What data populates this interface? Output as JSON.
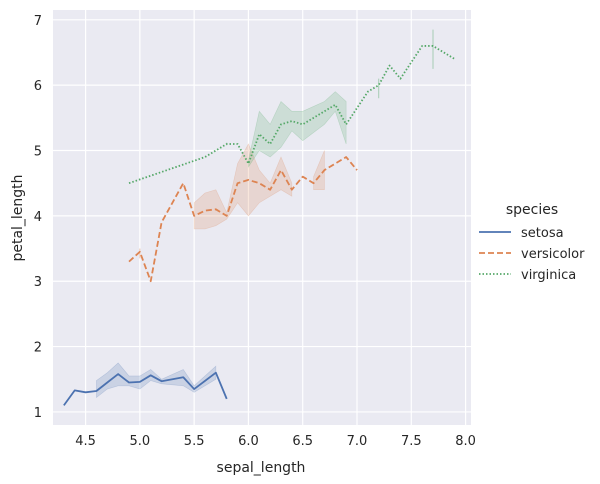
{
  "chart_data": {
    "type": "line",
    "title": "",
    "xlabel": "sepal_length",
    "ylabel": "petal_length",
    "xlim": [
      4.2,
      8.05
    ],
    "ylim": [
      0.8,
      7.15
    ],
    "xticks": [
      4.5,
      5.0,
      5.5,
      6.0,
      6.5,
      7.0,
      7.5,
      8.0
    ],
    "xtick_labels": [
      "4.5",
      "5.0",
      "5.5",
      "6.0",
      "6.5",
      "7.0",
      "7.5",
      "8.0"
    ],
    "yticks": [
      1,
      2,
      3,
      4,
      5,
      6,
      7
    ],
    "ytick_labels": [
      "1",
      "2",
      "3",
      "4",
      "5",
      "6",
      "7"
    ],
    "grid": true,
    "background": "#eaeaf2",
    "legend": {
      "title": "species",
      "placement": "right"
    },
    "series": [
      {
        "name": "setosa",
        "color": "#4c72b0",
        "dash": "solid",
        "points": [
          {
            "x": 4.3,
            "y": 1.1
          },
          {
            "x": 4.4,
            "y": 1.33
          },
          {
            "x": 4.5,
            "y": 1.3
          },
          {
            "x": 4.6,
            "y": 1.32,
            "lo": 1.22,
            "hi": 1.48
          },
          {
            "x": 4.7,
            "y": 1.45,
            "lo": 1.35,
            "hi": 1.6
          },
          {
            "x": 4.8,
            "y": 1.58,
            "lo": 1.4,
            "hi": 1.75
          },
          {
            "x": 4.9,
            "y": 1.45,
            "lo": 1.4,
            "hi": 1.55
          },
          {
            "x": 5.0,
            "y": 1.46,
            "lo": 1.35,
            "hi": 1.55
          },
          {
            "x": 5.1,
            "y": 1.56,
            "lo": 1.48,
            "hi": 1.65
          },
          {
            "x": 5.2,
            "y": 1.47,
            "lo": 1.43,
            "hi": 1.5
          },
          {
            "x": 5.4,
            "y": 1.53,
            "lo": 1.4,
            "hi": 1.65
          },
          {
            "x": 5.5,
            "y": 1.35,
            "lo": 1.3,
            "hi": 1.4
          },
          {
            "x": 5.7,
            "y": 1.6,
            "lo": 1.5,
            "hi": 1.7
          },
          {
            "x": 5.8,
            "y": 1.2
          }
        ]
      },
      {
        "name": "versicolor",
        "color": "#dd8452",
        "dash": "dashed",
        "points": [
          {
            "x": 4.9,
            "y": 3.3
          },
          {
            "x": 5.0,
            "y": 3.45,
            "lo": 3.35,
            "hi": 3.5
          },
          {
            "x": 5.1,
            "y": 3.0
          },
          {
            "x": 5.2,
            "y": 3.9
          },
          {
            "x": 5.4,
            "y": 4.5
          },
          {
            "x": 5.5,
            "y": 4.0,
            "lo": 3.8,
            "hi": 4.2
          },
          {
            "x": 5.6,
            "y": 4.08,
            "lo": 3.8,
            "hi": 4.35
          },
          {
            "x": 5.7,
            "y": 4.1,
            "lo": 3.85,
            "hi": 4.4
          },
          {
            "x": 5.8,
            "y": 4.0,
            "lo": 3.95,
            "hi": 4.05
          },
          {
            "x": 5.9,
            "y": 4.5,
            "lo": 4.2,
            "hi": 4.8
          },
          {
            "x": 6.0,
            "y": 4.55,
            "lo": 4.0,
            "hi": 5.1
          },
          {
            "x": 6.1,
            "y": 4.5,
            "lo": 4.2,
            "hi": 4.7
          },
          {
            "x": 6.2,
            "y": 4.4,
            "lo": 4.3,
            "hi": 4.5
          },
          {
            "x": 6.3,
            "y": 4.7,
            "lo": 4.4,
            "hi": 4.9
          },
          {
            "x": 6.4,
            "y": 4.4,
            "lo": 4.3,
            "hi": 4.5
          },
          {
            "x": 6.5,
            "y": 4.6
          },
          {
            "x": 6.6,
            "y": 4.5,
            "lo": 4.4,
            "hi": 4.6
          },
          {
            "x": 6.7,
            "y": 4.7,
            "lo": 4.4,
            "hi": 5.0
          },
          {
            "x": 6.8,
            "y": 4.8
          },
          {
            "x": 6.9,
            "y": 4.9
          },
          {
            "x": 7.0,
            "y": 4.7
          }
        ]
      },
      {
        "name": "virginica",
        "color": "#55a868",
        "dash": "dotted",
        "points": [
          {
            "x": 4.9,
            "y": 4.5
          },
          {
            "x": 5.6,
            "y": 4.9
          },
          {
            "x": 5.7,
            "y": 5.0
          },
          {
            "x": 5.8,
            "y": 5.1,
            "lo": 5.08,
            "hi": 5.12
          },
          {
            "x": 5.9,
            "y": 5.1
          },
          {
            "x": 6.0,
            "y": 4.8,
            "lo": 4.75,
            "hi": 4.85
          },
          {
            "x": 6.1,
            "y": 5.25,
            "lo": 5.0,
            "hi": 5.6
          },
          {
            "x": 6.2,
            "y": 5.1,
            "lo": 4.9,
            "hi": 5.4
          },
          {
            "x": 6.3,
            "y": 5.4,
            "lo": 5.05,
            "hi": 5.75
          },
          {
            "x": 6.4,
            "y": 5.45,
            "lo": 5.3,
            "hi": 5.6
          },
          {
            "x": 6.5,
            "y": 5.4,
            "lo": 5.15,
            "hi": 5.6
          },
          {
            "x": 6.7,
            "y": 5.6,
            "lo": 5.4,
            "hi": 5.75
          },
          {
            "x": 6.8,
            "y": 5.7,
            "lo": 5.6,
            "hi": 5.9
          },
          {
            "x": 6.9,
            "y": 5.4,
            "lo": 5.1,
            "hi": 5.75
          },
          {
            "x": 7.1,
            "y": 5.9
          },
          {
            "x": 7.2,
            "y": 6.0,
            "lo": 5.8,
            "hi": 6.1
          },
          {
            "x": 7.3,
            "y": 6.3
          },
          {
            "x": 7.4,
            "y": 6.1
          },
          {
            "x": 7.6,
            "y": 6.6
          },
          {
            "x": 7.7,
            "y": 6.6,
            "lo": 6.25,
            "hi": 6.85
          },
          {
            "x": 7.9,
            "y": 6.4
          }
        ]
      }
    ]
  }
}
